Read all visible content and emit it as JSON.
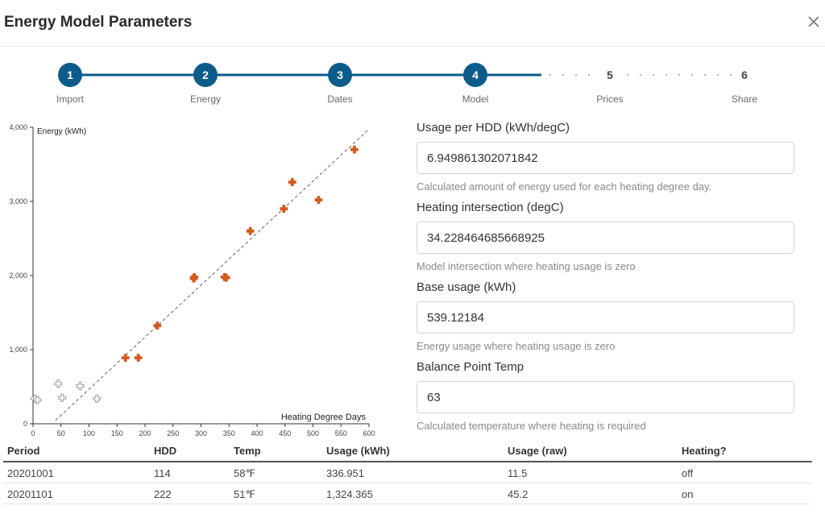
{
  "dialog": {
    "title": "Energy Model Parameters"
  },
  "steps": [
    {
      "number": "1",
      "label": "Import",
      "done": true
    },
    {
      "number": "2",
      "label": "Energy",
      "done": true
    },
    {
      "number": "3",
      "label": "Dates",
      "done": true
    },
    {
      "number": "4",
      "label": "Model",
      "done": true
    },
    {
      "number": "5",
      "label": "Prices",
      "done": false
    },
    {
      "number": "6",
      "label": "Share",
      "done": false
    }
  ],
  "colors": {
    "accent": "#0b5c8a",
    "heating_point": "#d35a1e",
    "non_heating_point": "#9a9a9a",
    "fit_line": "#666666"
  },
  "chart_data": {
    "type": "scatter",
    "xlabel": "Heating Degree Days",
    "ylabel": "Energy (kWh)",
    "xlim": [
      0,
      600
    ],
    "ylim": [
      0,
      4000
    ],
    "xticks": [
      "0",
      "50",
      "100",
      "150",
      "200",
      "250",
      "300",
      "350",
      "400",
      "450",
      "500",
      "550",
      "600"
    ],
    "yticks": [
      "0",
      "1,000",
      "2,000",
      "3,000",
      "4,000"
    ],
    "fit_line": {
      "x": [
        40,
        605
      ],
      "y": [
        45,
        3975
      ]
    },
    "series": [
      {
        "heating": true,
        "points": [
          [
            165,
            890
          ],
          [
            188,
            890
          ],
          [
            222,
            1324
          ],
          [
            287,
            1960
          ],
          [
            288,
            1980
          ],
          [
            342,
            1980
          ],
          [
            345,
            1970
          ],
          [
            388,
            2600
          ],
          [
            448,
            2900
          ],
          [
            463,
            3260
          ],
          [
            510,
            3020
          ],
          [
            574,
            3700
          ]
        ]
      },
      {
        "heating": false,
        "points": [
          [
            3,
            340
          ],
          [
            8,
            320
          ],
          [
            45,
            540
          ],
          [
            52,
            350
          ],
          [
            84,
            510
          ],
          [
            114,
            340
          ]
        ]
      }
    ]
  },
  "fields": [
    {
      "label": "Usage per HDD (kWh/degC)",
      "value": "6.949861302071842",
      "help": "Calculated amount of energy used for each heating degree day."
    },
    {
      "label": "Heating intersection (degC)",
      "value": "34.228464685668925",
      "help": "Model intersection where heating usage is zero"
    },
    {
      "label": "Base usage (kWh)",
      "value": "539.12184",
      "help": "Energy usage where heating usage is zero"
    },
    {
      "label": "Balance Point Temp",
      "value": "63",
      "help": "Calculated temperature where heating is required"
    }
  ],
  "table": {
    "headers": [
      "Period",
      "HDD",
      "Temp",
      "Usage (kWh)",
      "Usage (raw)",
      "Heating?"
    ],
    "rows": [
      [
        "20201001",
        "114",
        "58℉",
        "336.951",
        "11.5",
        "off"
      ],
      [
        "20201101",
        "222",
        "51℉",
        "1,324.365",
        "45.2",
        "on"
      ]
    ]
  }
}
